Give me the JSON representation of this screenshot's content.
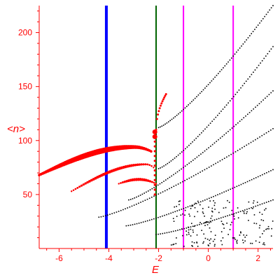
{
  "chart_data": {
    "type": "scatter",
    "title": "",
    "xlabel": "E",
    "ylabel": "<n>",
    "xlim": [
      -6.8,
      2.6
    ],
    "ylim": [
      0,
      225
    ],
    "x_ticks": [
      -6,
      -4,
      -2,
      0,
      2
    ],
    "x_tick_labels": [
      "-6",
      "-4",
      "-2",
      "0",
      "2"
    ],
    "y_ticks": [
      50,
      100,
      150,
      200
    ],
    "y_tick_labels": [
      "50",
      "100",
      "150",
      "200"
    ],
    "grid": false,
    "colors": {
      "axes": "#ff0000",
      "black_points": "#000000",
      "red_points": "#ff0000",
      "blue_line": "#0000ff",
      "green_line": "#006400",
      "magenta_line": "#ff00ff"
    },
    "vertical_lines": [
      {
        "x": -4.1,
        "color": "#0000ff"
      },
      {
        "x": -2.1,
        "color": "#006400"
      },
      {
        "x": -1.0,
        "color": "#ff00ff"
      },
      {
        "x": 1.0,
        "color": "#ff00ff"
      }
    ],
    "black_bands": [
      {
        "x_start": -2.0,
        "x_end": 2.6,
        "y_start": 112,
        "y_end": 225,
        "n": 70
      },
      {
        "x_start": -2.0,
        "x_end": 2.6,
        "y_start": 74,
        "y_end": 187,
        "n": 65
      },
      {
        "x_start": -3.2,
        "x_end": 2.6,
        "y_start": 45,
        "y_end": 146,
        "n": 75
      },
      {
        "x_start": -4.4,
        "x_end": 2.6,
        "y_start": 29,
        "y_end": 111,
        "n": 80
      },
      {
        "x_start": -3.3,
        "x_end": 2.6,
        "y_start": 21,
        "y_end": 73,
        "n": 70
      },
      {
        "x_start": -2.1,
        "x_end": 2.6,
        "y_start": 13,
        "y_end": 45,
        "n": 55
      }
    ],
    "black_scatter_region": {
      "x_range": [
        -1.5,
        2.6
      ],
      "y_range": [
        2,
        45
      ],
      "n": 170
    },
    "red_bands": [
      {
        "x_start": -6.8,
        "x_end": -2.3,
        "y_start": 68,
        "y_end": 90,
        "peak_x": -3.0,
        "peak_y": 94,
        "n": 65
      },
      {
        "x_start": -5.5,
        "x_end": -2.2,
        "y_start": 53,
        "y_end": 75,
        "peak_x": -2.5,
        "peak_y": 78,
        "n": 42
      },
      {
        "x_start": -3.6,
        "x_end": -2.1,
        "y_start": 60,
        "y_end": 60,
        "peak_x": -2.8,
        "peak_y": 64,
        "n": 20
      }
    ],
    "red_vertical_cluster": {
      "x": -2.15,
      "y_range": [
        50,
        108
      ],
      "n": 14
    },
    "red_arc": {
      "x_start": -2.1,
      "x_end": -1.7,
      "y_start": 110,
      "y_end": 143,
      "n": 12
    }
  }
}
